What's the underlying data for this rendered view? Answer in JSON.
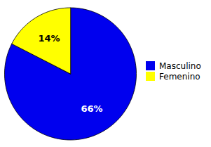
{
  "chart_data": {
    "type": "pie",
    "categories": [
      "Masculino",
      "Femenino"
    ],
    "values": [
      66,
      14
    ],
    "value_labels": [
      "66%",
      "14%"
    ],
    "colors": [
      "#0000EE",
      "#FFFF00"
    ],
    "data_labels": true,
    "legend": "right"
  }
}
